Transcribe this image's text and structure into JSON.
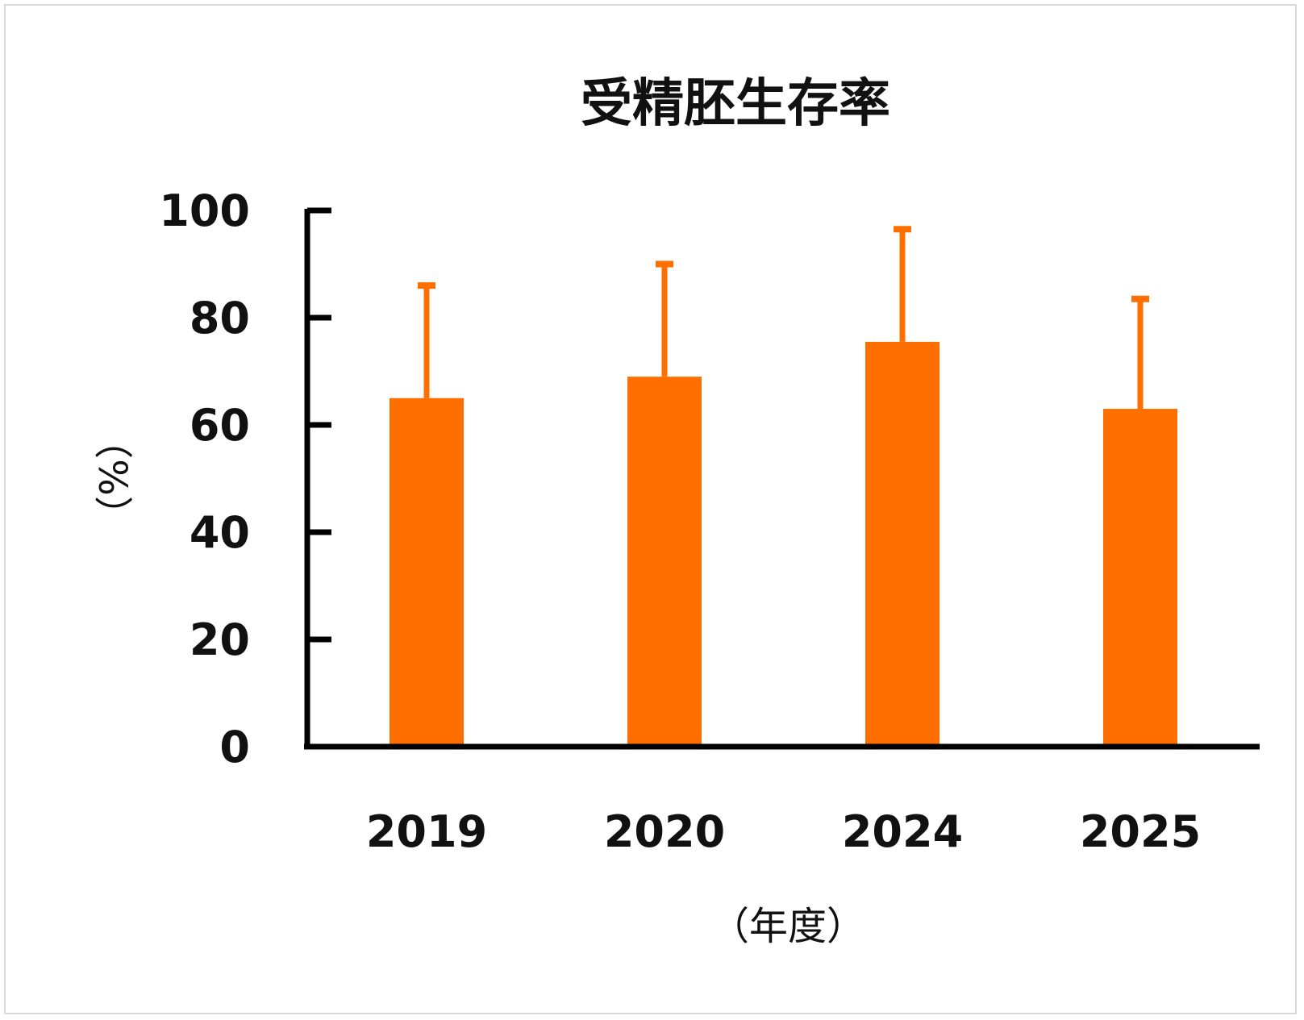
{
  "chart_data": {
    "type": "bar",
    "title": "受精胚生存率",
    "xlabel": "（年度）",
    "ylabel": "（%）",
    "categories": [
      "2019",
      "2020",
      "2024",
      "2025"
    ],
    "series": [
      {
        "values": [
          65,
          69,
          75.5,
          63
        ],
        "error_upper": [
          86,
          90,
          96.5,
          83.5
        ],
        "color": "#FF6F00"
      }
    ],
    "ylim": [
      0,
      100
    ],
    "yticks": [
      "0",
      "20",
      "40",
      "60",
      "80",
      "100"
    ],
    "grid": false,
    "legend": "none"
  }
}
